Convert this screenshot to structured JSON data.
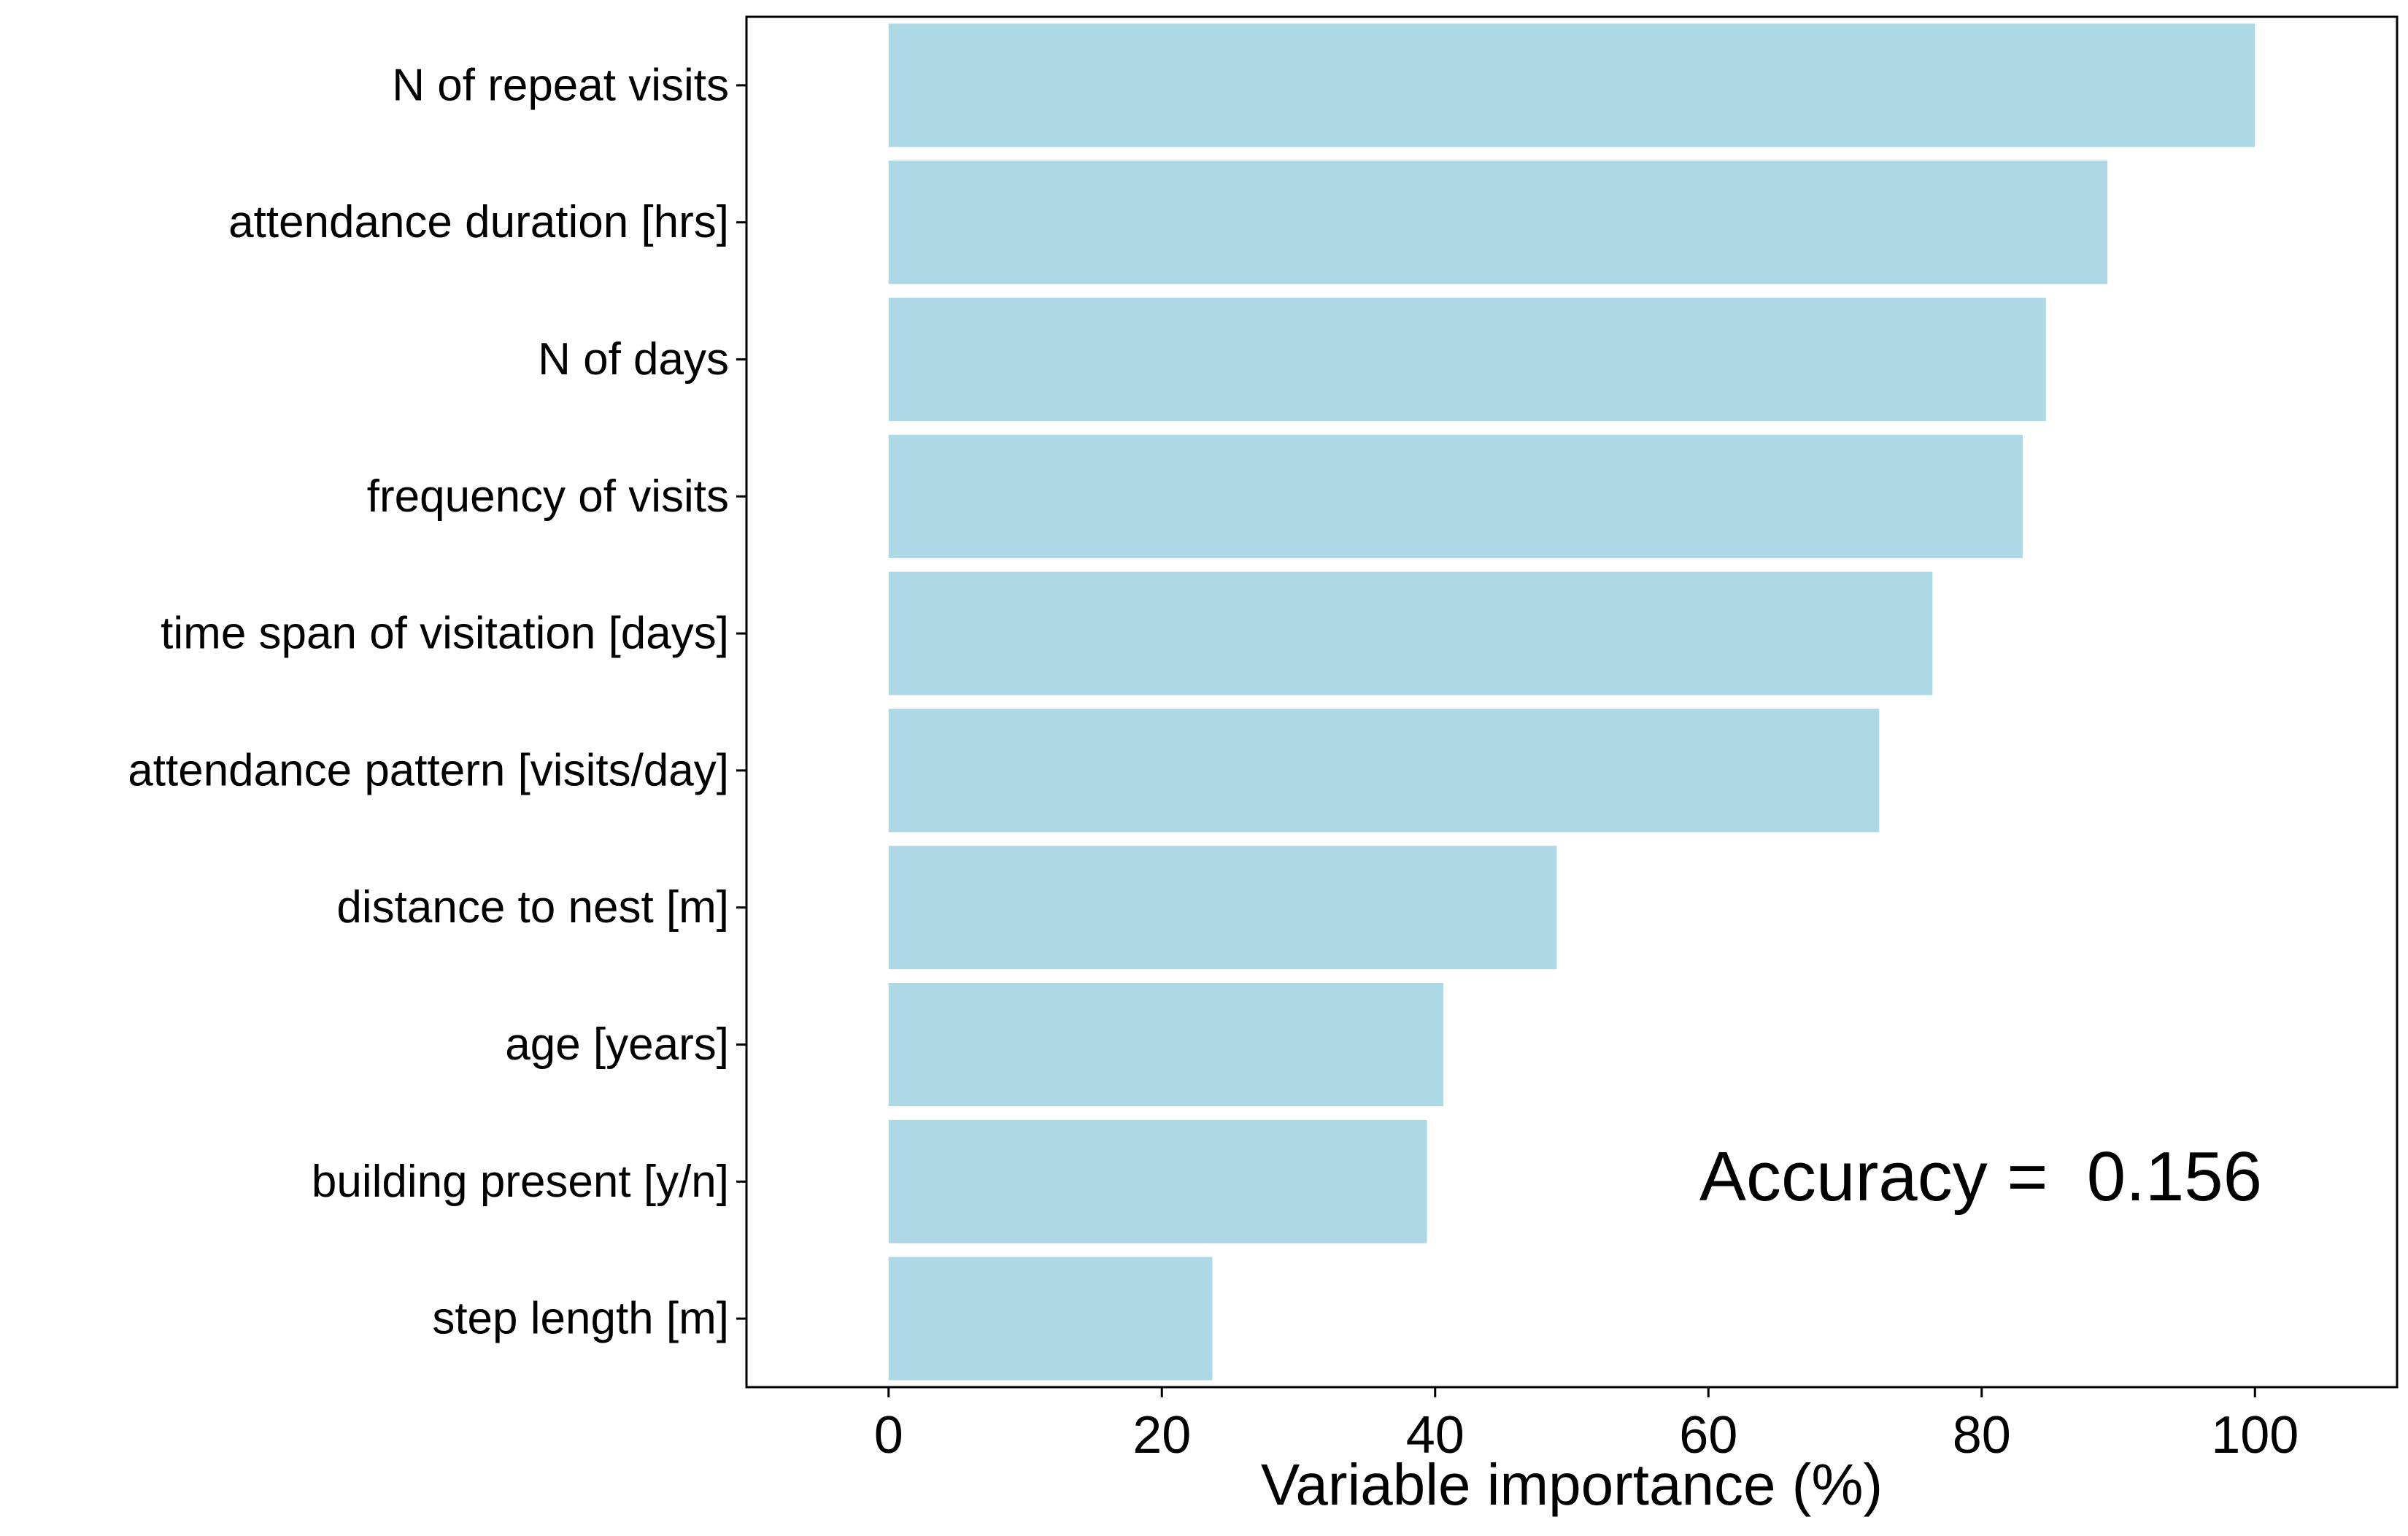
{
  "chart_data": {
    "type": "bar",
    "orientation": "horizontal",
    "categories": [
      "N of repeat visits",
      "attendance duration [hrs]",
      "N of days",
      "frequency of visits",
      "time span of visitation [days]",
      "attendance pattern [visits/day]",
      "distance to nest [m]",
      "age [years]",
      "building present [y/n]",
      "step length [m]"
    ],
    "values": [
      100,
      89.2,
      84.7,
      83.0,
      76.4,
      72.5,
      48.9,
      40.6,
      39.4,
      23.7
    ],
    "xlabel": "Variable importance (%)",
    "ylabel": "",
    "xlim": [
      -10.4,
      110.4
    ],
    "xticks": [
      "0",
      "20",
      "40",
      "60",
      "80",
      "100"
    ],
    "annotation": "Accuracy =  0.156",
    "annotation_placement": "bottom-right",
    "grid": false,
    "legend": false,
    "colors": {
      "bar": "#add8e6",
      "panel_border": "#000000",
      "background": "#ffffff"
    }
  }
}
